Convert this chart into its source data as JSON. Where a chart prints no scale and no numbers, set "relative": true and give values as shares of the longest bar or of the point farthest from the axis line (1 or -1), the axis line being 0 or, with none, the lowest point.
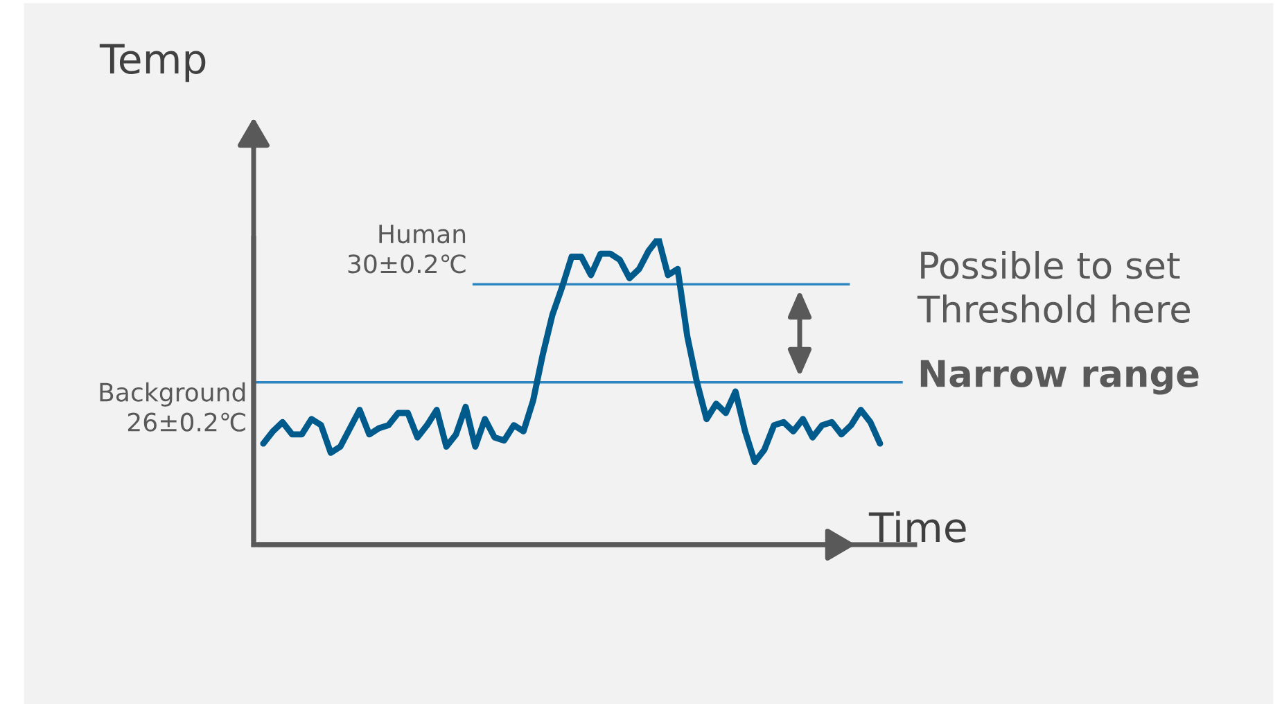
{
  "chart_data": {
    "type": "line",
    "relative": true,
    "xlabel": "Time",
    "ylabel": "Temp",
    "categories": [
      null,
      null,
      null,
      null,
      null,
      null,
      null,
      null,
      null,
      null,
      null,
      null,
      null,
      null,
      null,
      null,
      null,
      null,
      null,
      null,
      null,
      null,
      null,
      null,
      null,
      null,
      null,
      null,
      null,
      null,
      null,
      null,
      null,
      null,
      null,
      null,
      null,
      null,
      null,
      null,
      null,
      null,
      null,
      null,
      null,
      null,
      null,
      null,
      null,
      null,
      null,
      null,
      null,
      null,
      null,
      null,
      null,
      null,
      null,
      null,
      null,
      null,
      null,
      null,
      null
    ],
    "series": [
      {
        "color": "#005a8c",
        "values": [
          0.33,
          0.37,
          0.4,
          0.36,
          0.36,
          0.41,
          0.39,
          0.3,
          0.32,
          0.38,
          0.44,
          0.36,
          0.38,
          0.39,
          0.43,
          0.43,
          0.35,
          0.39,
          0.44,
          0.32,
          0.36,
          0.45,
          0.32,
          0.41,
          0.35,
          0.34,
          0.39,
          0.37,
          0.47,
          0.62,
          0.75,
          0.84,
          0.94,
          0.94,
          0.88,
          0.95,
          0.95,
          0.93,
          0.87,
          0.9,
          0.96,
          1.0,
          0.88,
          0.9,
          0.68,
          0.53,
          0.41,
          0.46,
          0.43,
          0.5,
          0.37,
          0.27,
          0.31,
          0.39,
          0.4,
          0.37,
          0.41,
          0.35,
          0.39,
          0.4,
          0.36,
          0.39,
          0.44,
          0.4,
          0.33
        ]
      }
    ],
    "ref_lines": [
      {
        "axis": "y",
        "value": 0.53,
        "label": "Background\n26±0.2℃",
        "color": "#2e86c1"
      },
      {
        "axis": "y",
        "value": 0.85,
        "label": "Human\n30±0.2℃",
        "color": "#2e86c1"
      }
    ],
    "annotations": [
      "Possible to set\nThreshold here",
      "Narrow range"
    ],
    "legend": false,
    "marker": "none",
    "line_style": "solid"
  }
}
